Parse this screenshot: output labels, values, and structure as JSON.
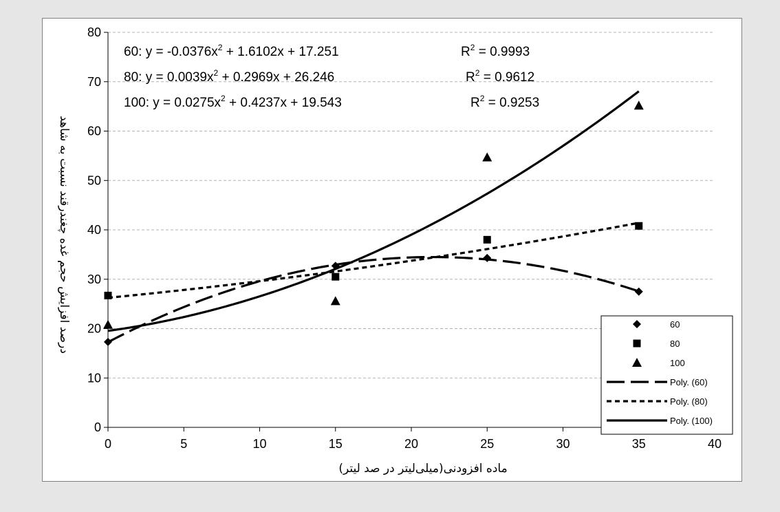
{
  "chart_data": {
    "type": "scatter",
    "xlabel": "ماده افزودنی(میلی‌لیتر در صد لیتر)",
    "ylabel": "درصد افزایش حجم غده چغندرقند نسبت به شاهد",
    "xlim": [
      0,
      40
    ],
    "ylim": [
      0,
      80
    ],
    "x_ticks": [
      "0",
      "5",
      "10",
      "15",
      "20",
      "25",
      "30",
      "35",
      "40"
    ],
    "y_ticks": [
      "0",
      "10",
      "20",
      "30",
      "40",
      "50",
      "60",
      "70",
      "80"
    ],
    "grid": "horizontal dashed",
    "legend_position": "bottom-right",
    "series": [
      {
        "name": "60",
        "marker": "diamond",
        "x": [
          0,
          15,
          25,
          35
        ],
        "y": [
          17.3,
          32.7,
          34.3,
          27.5
        ]
      },
      {
        "name": "80",
        "marker": "square",
        "x": [
          0,
          15,
          25,
          35
        ],
        "y": [
          26.7,
          30.5,
          38.0,
          40.8
        ]
      },
      {
        "name": "100",
        "marker": "triangle",
        "x": [
          0,
          15,
          25,
          35
        ],
        "y": [
          20.8,
          25.6,
          54.7,
          65.2
        ]
      }
    ],
    "trendlines": [
      {
        "name": "Poly. (60)",
        "style": "long-dash",
        "coeffs": [
          -0.0376,
          1.6102,
          17.251
        ]
      },
      {
        "name": "Poly. (80)",
        "style": "short-dash",
        "coeffs": [
          0.0039,
          0.2969,
          26.246
        ]
      },
      {
        "name": "Poly. (100)",
        "style": "solid",
        "coeffs": [
          0.0275,
          0.4237,
          19.543
        ]
      }
    ],
    "annotations": [
      {
        "label": "60",
        "equation": "y = -0.0376x",
        "rest": " + 1.6102x + 17.251",
        "r2": " = 0.9993"
      },
      {
        "label": "80",
        "equation": "y = 0.0039x",
        "rest": " + 0.2969x + 26.246",
        "r2": " = 0.9612"
      },
      {
        "label": "100",
        "equation": "y = 0.0275x",
        "rest": " + 0.4237x + 19.543",
        "r2": " = 0.9253"
      }
    ]
  }
}
